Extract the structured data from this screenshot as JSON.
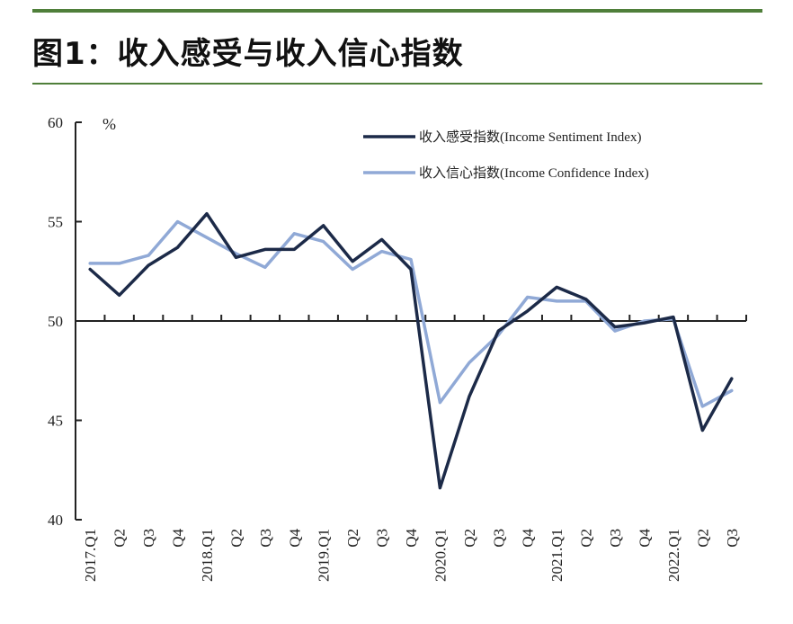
{
  "page_title": "图1：收入感受与收入信心指数",
  "chart_data": {
    "type": "line",
    "title": "图1：收入感受与收入信心指数",
    "ylabel": "%",
    "ylim": [
      40,
      60
    ],
    "yticks": [
      40,
      45,
      50,
      55,
      60
    ],
    "reference_line": 50,
    "legend_position": "top-right",
    "categories": [
      "2017.Q1",
      "Q2",
      "Q3",
      "Q4",
      "2018.Q1",
      "Q2",
      "Q3",
      "Q4",
      "2019.Q1",
      "Q2",
      "Q3",
      "Q4",
      "2020.Q1",
      "Q2",
      "Q3",
      "Q4",
      "2021.Q1",
      "Q2",
      "Q3",
      "Q4",
      "2022.Q1",
      "Q2",
      "Q3"
    ],
    "series": [
      {
        "name": "收入感受指数(Income Sentiment Index)",
        "color": "#1c2a48",
        "values": [
          52.6,
          51.3,
          52.8,
          53.7,
          55.4,
          53.2,
          53.6,
          53.6,
          54.8,
          53.0,
          54.1,
          52.6,
          41.6,
          46.2,
          49.5,
          50.5,
          51.7,
          51.1,
          49.7,
          49.9,
          50.2,
          44.5,
          47.1
        ]
      },
      {
        "name": "收入信心指数(Income Confidence Index)",
        "color": "#90a9d6",
        "values": [
          52.9,
          52.9,
          53.3,
          55.0,
          54.2,
          53.4,
          52.7,
          54.4,
          54.0,
          52.6,
          53.5,
          53.1,
          45.9,
          47.9,
          49.3,
          51.2,
          51.0,
          51.0,
          49.5,
          50.0,
          50.1,
          45.7,
          46.5
        ]
      }
    ]
  }
}
